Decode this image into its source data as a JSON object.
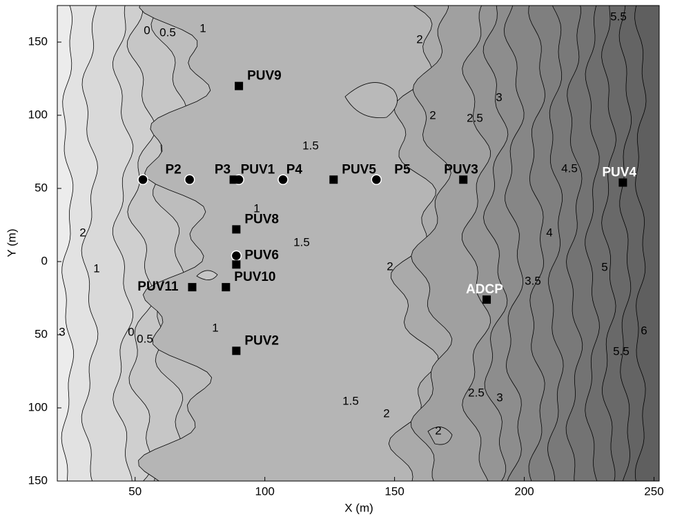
{
  "chart_data": {
    "type": "scatter",
    "x_label": "X (m)",
    "y_label": "Y (m)",
    "xlim": [
      20,
      252
    ],
    "ylim": [
      -150,
      175
    ],
    "xticks": [
      50,
      100,
      150,
      200,
      250
    ],
    "yticks": [
      {
        "value": -150,
        "label": "150"
      },
      {
        "value": -100,
        "label": "100"
      },
      {
        "value": -50,
        "label": "50"
      },
      0,
      50,
      100,
      150
    ],
    "contour_labels": [
      0,
      0.5,
      1,
      2,
      2,
      2.5,
      3,
      1.5,
      4.5,
      4,
      5,
      3.5,
      6,
      5.5,
      2,
      1.5,
      1,
      1,
      0,
      0.5,
      2,
      1,
      3,
      1.5,
      2,
      2.5,
      3,
      2,
      5.5
    ],
    "stations": [
      {
        "name": "PUV9",
        "marker": "square",
        "x": 90,
        "y": 120
      },
      {
        "name": null,
        "marker": "circle",
        "x": 53,
        "y": 56
      },
      {
        "name": "P2",
        "marker": "circle",
        "x": 71,
        "y": 56
      },
      {
        "name": "P3",
        "marker": "circle",
        "x": 90,
        "y": 56
      },
      {
        "name": "PUV1",
        "marker": "square",
        "x": 88,
        "y": 56
      },
      {
        "name": "P4",
        "marker": "circle",
        "x": 107,
        "y": 56
      },
      {
        "name": "PUV5",
        "marker": "square",
        "x": 126.5,
        "y": 56
      },
      {
        "name": "P5",
        "marker": "circle",
        "x": 143,
        "y": 56
      },
      {
        "name": "PUV3",
        "marker": "square",
        "x": 176.5,
        "y": 56
      },
      {
        "name": "PUV4",
        "marker": "square",
        "x": 238,
        "y": 54
      },
      {
        "name": "PUV8",
        "marker": "square",
        "x": 89,
        "y": 22
      },
      {
        "name": "PUV6",
        "marker": "circle",
        "x": 89,
        "y": 4
      },
      {
        "name": null,
        "marker": "square",
        "x": 89,
        "y": -2
      },
      {
        "name": "PUV10",
        "marker": "square",
        "x": 85,
        "y": -17.5
      },
      {
        "name": "PUV11",
        "marker": "square",
        "x": 72,
        "y": -17.5
      },
      {
        "name": "ADCP",
        "marker": "square",
        "x": 185.5,
        "y": -26
      },
      {
        "name": "PUV2",
        "marker": "square",
        "x": 89,
        "y": -61
      }
    ]
  }
}
